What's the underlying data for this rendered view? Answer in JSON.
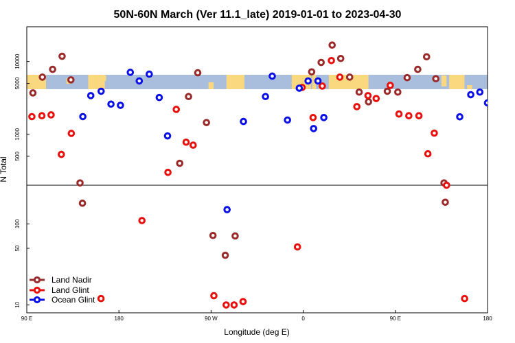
{
  "chart_data": {
    "type": "scatter",
    "title": "50N-60N March (Ver 11.1_late)   2019-01-01 to 2023-04-30",
    "xlabel": "Longitude (deg E)",
    "ylabel": "N Total",
    "xlim": [
      90,
      450
    ],
    "x_ticks": [
      {
        "value": 90,
        "label": "90 E"
      },
      {
        "value": 162,
        "label": "180"
      },
      {
        "value": 234,
        "label": "90 W"
      },
      {
        "value": 306,
        "label": "0"
      },
      {
        "value": 378,
        "label": "90 E"
      },
      {
        "value": 450,
        "label": "180"
      }
    ],
    "y_scale": "log",
    "panels": [
      {
        "name": "upper",
        "ylim": [
          200,
          30000
        ],
        "y_ticks": [
          500,
          1000,
          5000,
          10000
        ]
      },
      {
        "name": "lower",
        "ylim": [
          8,
          300
        ],
        "y_ticks": [
          10,
          50,
          100
        ]
      }
    ],
    "map_band": {
      "label": "world map strip",
      "ocean_color": "#a9bedd",
      "land_color": "#fad87f"
    },
    "series": [
      {
        "name": "Land Nadir",
        "color": "#9b2a2a",
        "points": [
          {
            "x": 94.8,
            "y": 3700
          },
          {
            "x": 102.2,
            "y": 6100
          },
          {
            "x": 110.2,
            "y": 7800
          },
          {
            "x": 117.6,
            "y": 11800
          },
          {
            "x": 124.5,
            "y": 5600
          },
          {
            "x": 131.6,
            "y": 215
          },
          {
            "x": 133.5,
            "y": 180
          },
          {
            "x": 209.5,
            "y": 400
          },
          {
            "x": 216.4,
            "y": 3300
          },
          {
            "x": 223.6,
            "y": 7000
          },
          {
            "x": 230.4,
            "y": 1450
          },
          {
            "x": 235.5,
            "y": 72
          },
          {
            "x": 245.1,
            "y": 41
          },
          {
            "x": 252.8,
            "y": 71
          },
          {
            "x": 312.6,
            "y": 7200
          },
          {
            "x": 320.0,
            "y": 9700
          },
          {
            "x": 328.6,
            "y": 16800
          },
          {
            "x": 335.3,
            "y": 11000
          },
          {
            "x": 342.3,
            "y": 6100
          },
          {
            "x": 349.7,
            "y": 3800
          },
          {
            "x": 357.0,
            "y": 2800
          },
          {
            "x": 371.7,
            "y": 3900
          },
          {
            "x": 379.9,
            "y": 3800
          },
          {
            "x": 387.2,
            "y": 6000
          },
          {
            "x": 395.5,
            "y": 7800
          },
          {
            "x": 402.4,
            "y": 11600
          },
          {
            "x": 409.6,
            "y": 5800
          },
          {
            "x": 416.0,
            "y": 215
          },
          {
            "x": 417.0,
            "y": 185
          }
        ]
      },
      {
        "name": "Land Glint",
        "color": "#e8100c",
        "points": [
          {
            "x": 94.0,
            "y": 1750
          },
          {
            "x": 101.8,
            "y": 1800
          },
          {
            "x": 109.0,
            "y": 1850
          },
          {
            "x": 117.0,
            "y": 530
          },
          {
            "x": 124.8,
            "y": 1030
          },
          {
            "x": 148.0,
            "y": 12
          },
          {
            "x": 180.0,
            "y": 110
          },
          {
            "x": 200.3,
            "y": 300
          },
          {
            "x": 206.8,
            "y": 2200
          },
          {
            "x": 214.5,
            "y": 780
          },
          {
            "x": 220.0,
            "y": 710
          },
          {
            "x": 236.2,
            "y": 13
          },
          {
            "x": 245.8,
            "y": 10
          },
          {
            "x": 252.0,
            "y": 10
          },
          {
            "x": 259.0,
            "y": 11
          },
          {
            "x": 301.5,
            "y": 52
          },
          {
            "x": 305.1,
            "y": 4400
          },
          {
            "x": 313.7,
            "y": 1700
          },
          {
            "x": 320.9,
            "y": 4600
          },
          {
            "x": 328.0,
            "y": 10300
          },
          {
            "x": 334.6,
            "y": 6100
          },
          {
            "x": 347.9,
            "y": 2400
          },
          {
            "x": 356.6,
            "y": 3400
          },
          {
            "x": 363.0,
            "y": 3100
          },
          {
            "x": 374.0,
            "y": 4700
          },
          {
            "x": 380.8,
            "y": 1900
          },
          {
            "x": 388.5,
            "y": 1800
          },
          {
            "x": 396.4,
            "y": 1800
          },
          {
            "x": 403.4,
            "y": 540
          },
          {
            "x": 408.4,
            "y": 1040
          },
          {
            "x": 418.0,
            "y": 200
          },
          {
            "x": 432.1,
            "y": 12
          }
        ]
      },
      {
        "name": "Ocean Glint",
        "color": "#0a10e6",
        "points": [
          {
            "x": 133.8,
            "y": 1750
          },
          {
            "x": 140.0,
            "y": 3400
          },
          {
            "x": 148.1,
            "y": 3900
          },
          {
            "x": 155.8,
            "y": 2600
          },
          {
            "x": 163.2,
            "y": 2500
          },
          {
            "x": 170.9,
            "y": 7100
          },
          {
            "x": 177.9,
            "y": 5400
          },
          {
            "x": 185.7,
            "y": 6700
          },
          {
            "x": 193.5,
            "y": 3200
          },
          {
            "x": 200.0,
            "y": 950
          },
          {
            "x": 246.5,
            "y": 150
          },
          {
            "x": 259.3,
            "y": 1500
          },
          {
            "x": 276.5,
            "y": 3300
          },
          {
            "x": 281.8,
            "y": 6300
          },
          {
            "x": 293.7,
            "y": 1570
          },
          {
            "x": 302.9,
            "y": 4300
          },
          {
            "x": 309.8,
            "y": 5400
          },
          {
            "x": 314.1,
            "y": 1200
          },
          {
            "x": 317.5,
            "y": 5400
          },
          {
            "x": 322.1,
            "y": 1700
          },
          {
            "x": 428.3,
            "y": 1740
          },
          {
            "x": 436.9,
            "y": 3500
          },
          {
            "x": 444.0,
            "y": 3800
          },
          {
            "x": 450.0,
            "y": 2700
          }
        ]
      }
    ],
    "legend": {
      "position": "bottom-left",
      "entries": [
        "Land Nadir",
        "Land Glint",
        "Ocean Glint"
      ]
    }
  }
}
